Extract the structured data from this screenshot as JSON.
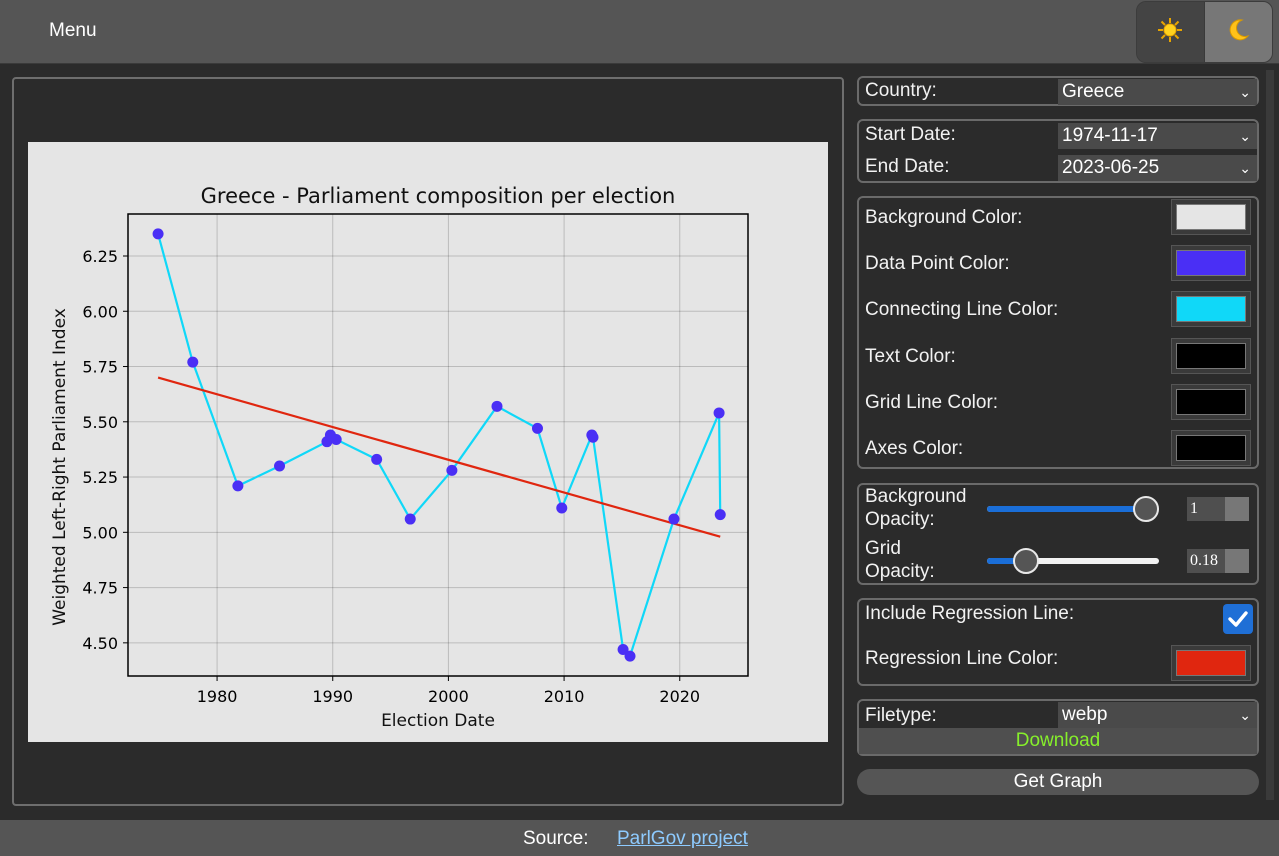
{
  "topbar": {
    "menu_label": "Menu",
    "light_icon": "sun-icon",
    "dark_icon": "moon-icon"
  },
  "controls": {
    "country_label": "Country:",
    "country_value": "Greece",
    "start_date_label": "Start Date:",
    "start_date_value": "1974-11-17",
    "end_date_label": "End Date:",
    "end_date_value": "2023-06-25",
    "colors": [
      {
        "label": "Background Color:",
        "value": "#e5e5e5"
      },
      {
        "label": "Data Point Color:",
        "value": "#4a2ff5"
      },
      {
        "label": "Connecting Line Color:",
        "value": "#10d8f8"
      },
      {
        "label": "Text Color:",
        "value": "#000000"
      },
      {
        "label": "Grid Line Color:",
        "value": "#000000"
      },
      {
        "label": "Axes Color:",
        "value": "#000000"
      }
    ],
    "bg_opacity_label_1": "Background",
    "bg_opacity_label_2": "Opacity:",
    "bg_opacity_value": "1",
    "bg_opacity_fraction": 1.0,
    "grid_opacity_label_1": "Grid",
    "grid_opacity_label_2": "Opacity:",
    "grid_opacity_value": "0.18",
    "grid_opacity_fraction": 0.18,
    "regression_label": "Include Regression Line:",
    "regression_checked": true,
    "regression_color_label": "Regression Line Color:",
    "regression_color": "#e0260f",
    "filetype_label": "Filetype:",
    "filetype_value": "webp",
    "download_label": "Download",
    "get_graph_label": "Get Graph"
  },
  "footer": {
    "source_label": "Source:",
    "link_text": "ParlGov project"
  },
  "chart_data": {
    "type": "scatter",
    "title": "Greece - Parliament composition per election",
    "xlabel": "Election Date",
    "ylabel": "Weighted Left-Right Parliament Index",
    "xlim": [
      1972.3,
      2025.9
    ],
    "ylim": [
      4.35,
      6.44
    ],
    "xticks": [
      1980,
      1990,
      2000,
      2010,
      2020
    ],
    "yticks": [
      4.5,
      4.75,
      5.0,
      5.25,
      5.5,
      5.75,
      6.0,
      6.25
    ],
    "ytick_labels": [
      "4.50",
      "4.75",
      "5.00",
      "5.25",
      "5.50",
      "5.75",
      "6.00",
      "6.25"
    ],
    "grid": true,
    "series": [
      {
        "x": [
          1974.9,
          1977.9,
          1981.8,
          1985.4,
          1989.5,
          1989.8,
          1990.3,
          1993.8,
          1996.7,
          2000.3,
          2004.2,
          2007.7,
          2009.8,
          2012.4,
          2012.5,
          2015.1,
          2015.7,
          2019.5,
          2023.4,
          2023.5
        ],
        "y": [
          6.35,
          5.77,
          5.21,
          5.3,
          5.41,
          5.44,
          5.42,
          5.33,
          5.06,
          5.28,
          5.57,
          5.47,
          5.11,
          5.44,
          5.43,
          4.47,
          4.44,
          5.06,
          5.54,
          5.08
        ]
      }
    ],
    "regression": {
      "x": [
        1974.9,
        2023.5
      ],
      "y": [
        5.7,
        4.98
      ]
    }
  }
}
